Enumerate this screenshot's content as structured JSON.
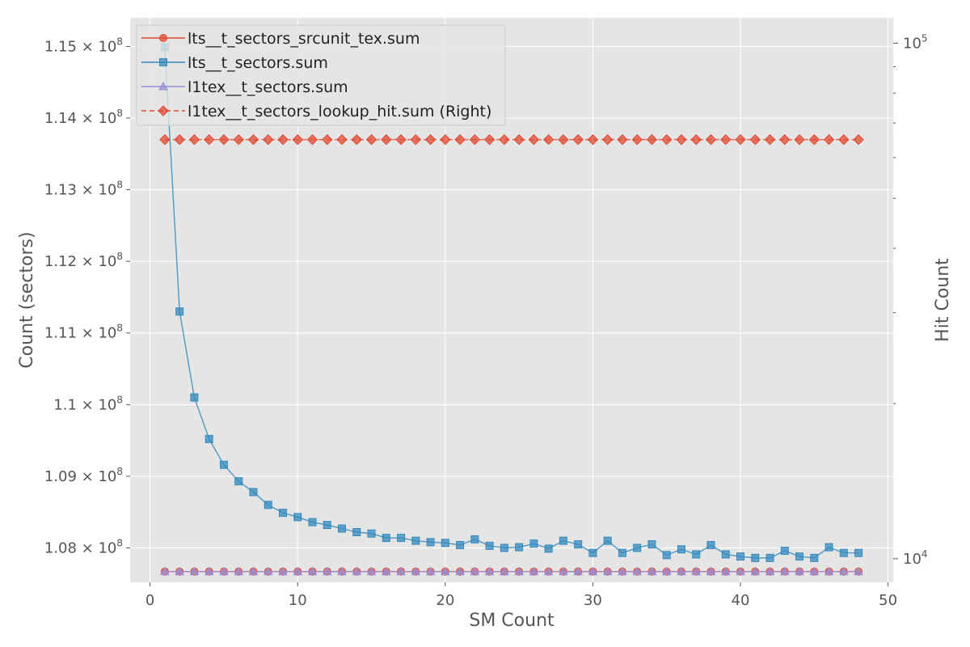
{
  "chart_data": {
    "type": "line",
    "xlabel": "SM Count",
    "ylabel": "Count (sectors)",
    "y2label": "Hit Count",
    "xlim": [
      -1.35,
      50.35
    ],
    "ylim": [
      107320000,
      115200000
    ],
    "y2lim": [
      9000,
      112000
    ],
    "y2scale": "log",
    "grid": true,
    "legend_position": "top-left",
    "x_ticks": [
      0,
      10,
      20,
      30,
      40,
      50
    ],
    "x_tick_labels": [
      "0",
      "10",
      "20",
      "30",
      "40",
      "50"
    ],
    "y_ticks": [
      107800000,
      108800000,
      109800000,
      110800000,
      111800000,
      112800000,
      113800000,
      114800000
    ],
    "y_tick_labels": [
      {
        "mantissa": "1.08",
        "exponent": "8"
      },
      {
        "mantissa": "1.09",
        "exponent": "8"
      },
      {
        "mantissa": "1.1",
        "exponent": "8"
      },
      {
        "mantissa": "1.11",
        "exponent": "8"
      },
      {
        "mantissa": "1.12",
        "exponent": "8"
      },
      {
        "mantissa": "1.13",
        "exponent": "8"
      },
      {
        "mantissa": "1.14",
        "exponent": "8"
      },
      {
        "mantissa": "1.15",
        "exponent": "8"
      }
    ],
    "times_sign": "×",
    "tick_base": "10",
    "y2_ticks": [
      10000,
      100000
    ],
    "y2_tick_labels": [
      {
        "base": "10",
        "exponent": "4"
      },
      {
        "base": "10",
        "exponent": "5"
      }
    ],
    "y2_minor_ticks": [
      20000,
      30000,
      40000,
      50000,
      60000,
      70000,
      80000,
      90000
    ],
    "x": [
      1,
      2,
      3,
      4,
      5,
      6,
      7,
      8,
      9,
      10,
      11,
      12,
      13,
      14,
      15,
      16,
      17,
      18,
      19,
      20,
      21,
      22,
      23,
      24,
      25,
      26,
      27,
      28,
      29,
      30,
      31,
      32,
      33,
      34,
      35,
      36,
      37,
      38,
      39,
      40,
      41,
      42,
      43,
      44,
      45,
      46,
      47,
      48
    ],
    "series": [
      {
        "name": "lts__t_sectors_srcunit_tex.sum",
        "axis": "left",
        "color": "#E24A33",
        "marker": "circle",
        "dashed": false,
        "values": [
          107470000,
          107470000,
          107470000,
          107470000,
          107470000,
          107470000,
          107470000,
          107470000,
          107470000,
          107470000,
          107470000,
          107470000,
          107470000,
          107470000,
          107470000,
          107470000,
          107470000,
          107470000,
          107470000,
          107470000,
          107470000,
          107470000,
          107470000,
          107470000,
          107470000,
          107470000,
          107470000,
          107470000,
          107470000,
          107470000,
          107470000,
          107470000,
          107470000,
          107470000,
          107470000,
          107470000,
          107470000,
          107470000,
          107470000,
          107470000,
          107470000,
          107470000,
          107470000,
          107470000,
          107470000,
          107470000,
          107470000,
          107470000
        ]
      },
      {
        "name": "lts__t_sectors.sum",
        "axis": "left",
        "color": "#348ABD",
        "marker": "square",
        "dashed": false,
        "values": [
          114790000,
          111100000,
          109900000,
          109320000,
          108960000,
          108730000,
          108580000,
          108400000,
          108290000,
          108230000,
          108160000,
          108120000,
          108070000,
          108020000,
          108000000,
          107940000,
          107940000,
          107900000,
          107880000,
          107870000,
          107840000,
          107920000,
          107830000,
          107800000,
          107810000,
          107860000,
          107790000,
          107900000,
          107850000,
          107730000,
          107900000,
          107730000,
          107800000,
          107850000,
          107700000,
          107780000,
          107710000,
          107840000,
          107710000,
          107680000,
          107660000,
          107660000,
          107760000,
          107680000,
          107660000,
          107810000,
          107730000,
          107730000
        ]
      },
      {
        "name": "l1tex__t_sectors.sum",
        "axis": "left",
        "color": "#988ED5",
        "marker": "triangle",
        "dashed": false,
        "values": [
          107470000,
          107470000,
          107470000,
          107470000,
          107470000,
          107470000,
          107470000,
          107470000,
          107470000,
          107470000,
          107470000,
          107470000,
          107470000,
          107470000,
          107470000,
          107470000,
          107470000,
          107470000,
          107470000,
          107470000,
          107470000,
          107470000,
          107470000,
          107470000,
          107470000,
          107470000,
          107470000,
          107470000,
          107470000,
          107470000,
          107470000,
          107470000,
          107470000,
          107470000,
          107470000,
          107470000,
          107470000,
          107470000,
          107470000,
          107470000,
          107470000,
          107470000,
          107470000,
          107470000,
          107470000,
          107470000,
          107470000,
          107470000
        ]
      },
      {
        "name": "l1tex__t_sectors_lookup_hit.sum (Right)",
        "axis": "right",
        "color": "#E24A33",
        "marker": "diamond",
        "dashed": true,
        "values": [
          65000,
          65000,
          65000,
          65000,
          65000,
          65000,
          65000,
          65000,
          65000,
          65000,
          65000,
          65000,
          65000,
          65000,
          65000,
          65000,
          65000,
          65000,
          65000,
          65000,
          65000,
          65000,
          65000,
          65000,
          65000,
          65000,
          65000,
          65000,
          65000,
          65000,
          65000,
          65000,
          65000,
          65000,
          65000,
          65000,
          65000,
          65000,
          65000,
          65000,
          65000,
          65000,
          65000,
          65000,
          65000,
          65000,
          65000,
          65000
        ]
      }
    ]
  }
}
